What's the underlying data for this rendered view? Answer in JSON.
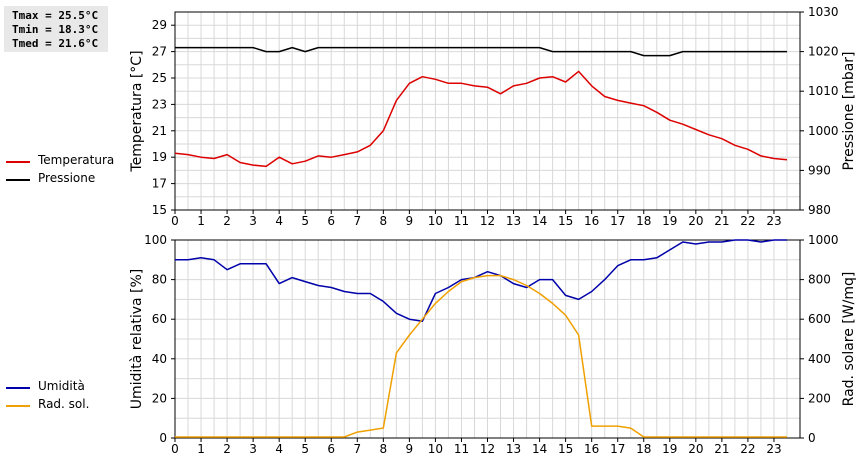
{
  "stats": {
    "tmax": "Tmax = 25.5°C",
    "tmin": "Tmin = 18.3°C",
    "tmed": "Tmed = 21.6°C"
  },
  "colors": {
    "temperature": "#dd0000",
    "pressure": "#000000",
    "humidity": "#0000aa",
    "radiation": "#f0a000",
    "grid": "#d8d8d8"
  },
  "chart_data": [
    {
      "type": "line",
      "xlabel": "",
      "xlim": [
        0,
        24
      ],
      "xticks": [
        "0",
        "1",
        "2",
        "3",
        "4",
        "5",
        "6",
        "7",
        "8",
        "9",
        "10",
        "11",
        "12",
        "13",
        "14",
        "15",
        "16",
        "17",
        "18",
        "19",
        "20",
        "21",
        "22",
        "23"
      ],
      "ylabel": "Temperatura [°C]",
      "ylim": [
        15,
        30
      ],
      "yticks": [
        "15",
        "17",
        "19",
        "21",
        "23",
        "25",
        "27",
        "29"
      ],
      "y2label": "Pressione [mbar]",
      "y2lim": [
        980,
        1030
      ],
      "y2ticks": [
        "980",
        "990",
        "1000",
        "1010",
        "1020",
        "1030"
      ],
      "legend_placement": "left",
      "series": [
        {
          "name": "Temperatura",
          "axis": "left",
          "x": [
            0,
            0.5,
            1,
            1.5,
            2,
            2.5,
            3,
            3.5,
            4,
            4.5,
            5,
            5.5,
            6,
            6.5,
            7,
            7.5,
            8,
            8.5,
            9,
            9.5,
            10,
            10.5,
            11,
            11.5,
            12,
            12.5,
            13,
            13.5,
            14,
            14.5,
            15,
            15.5,
            16,
            16.5,
            17,
            17.5,
            18,
            18.5,
            19,
            19.5,
            20,
            20.5,
            21,
            21.5,
            22,
            22.5,
            23,
            23.5
          ],
          "y": [
            19.3,
            19.2,
            19.0,
            18.9,
            19.2,
            18.6,
            18.4,
            18.3,
            19.0,
            18.5,
            18.7,
            19.1,
            19.0,
            19.2,
            19.4,
            19.9,
            21.0,
            23.3,
            24.6,
            25.1,
            24.9,
            24.6,
            24.6,
            24.4,
            24.3,
            23.8,
            24.4,
            24.6,
            25.0,
            25.1,
            24.7,
            25.5,
            24.4,
            23.6,
            23.3,
            23.1,
            22.9,
            22.4,
            21.8,
            21.5,
            21.1,
            20.7,
            20.4,
            19.9,
            19.6,
            19.1,
            18.9,
            18.8
          ]
        },
        {
          "name": "Pressione",
          "axis": "right",
          "x": [
            0,
            0.5,
            1,
            1.5,
            2,
            2.5,
            3,
            3.5,
            4,
            4.5,
            5,
            5.5,
            6,
            6.5,
            7,
            7.5,
            8,
            8.5,
            9,
            9.5,
            10,
            10.5,
            11,
            11.5,
            12,
            12.5,
            13,
            13.5,
            14,
            14.5,
            15,
            15.5,
            16,
            16.5,
            17,
            17.5,
            18,
            18.5,
            19,
            19.5,
            20,
            20.5,
            21,
            21.5,
            22,
            22.5,
            23,
            23.5
          ],
          "y": [
            1021,
            1021,
            1021,
            1021,
            1021,
            1021,
            1021,
            1020,
            1020,
            1021,
            1020,
            1021,
            1021,
            1021,
            1021,
            1021,
            1021,
            1021,
            1021,
            1021,
            1021,
            1021,
            1021,
            1021,
            1021,
            1021,
            1021,
            1021,
            1021,
            1020,
            1020,
            1020,
            1020,
            1020,
            1020,
            1020,
            1019,
            1019,
            1019,
            1020,
            1020,
            1020,
            1020,
            1020,
            1020,
            1020,
            1020,
            1020
          ]
        }
      ]
    },
    {
      "type": "line",
      "xlabel": "",
      "xlim": [
        0,
        24
      ],
      "xticks": [
        "0",
        "1",
        "2",
        "3",
        "4",
        "5",
        "6",
        "7",
        "8",
        "9",
        "10",
        "11",
        "12",
        "13",
        "14",
        "15",
        "16",
        "17",
        "18",
        "19",
        "20",
        "21",
        "22",
        "23"
      ],
      "ylabel": "Umidità relativa [%]",
      "ylim": [
        0,
        100
      ],
      "yticks": [
        "0",
        "20",
        "40",
        "60",
        "80",
        "100"
      ],
      "y2label": "Rad. solare [W/mq]",
      "y2lim": [
        0,
        1000
      ],
      "y2ticks": [
        "0",
        "200",
        "400",
        "600",
        "800",
        "1000"
      ],
      "legend_placement": "left",
      "series": [
        {
          "name": "Umidità",
          "axis": "left",
          "x": [
            0,
            0.5,
            1,
            1.5,
            2,
            2.5,
            3,
            3.5,
            4,
            4.5,
            5,
            5.5,
            6,
            6.5,
            7,
            7.5,
            8,
            8.5,
            9,
            9.5,
            10,
            10.5,
            11,
            11.5,
            12,
            12.5,
            13,
            13.5,
            14,
            14.5,
            15,
            15.5,
            16,
            16.5,
            17,
            17.5,
            18,
            18.5,
            19,
            19.5,
            20,
            20.5,
            21,
            21.5,
            22,
            22.5,
            23,
            23.5
          ],
          "y": [
            90,
            90,
            91,
            90,
            85,
            88,
            88,
            88,
            78,
            81,
            79,
            77,
            76,
            74,
            73,
            73,
            69,
            63,
            60,
            59,
            73,
            76,
            80,
            81,
            84,
            82,
            78,
            76,
            80,
            80,
            72,
            70,
            74,
            80,
            87,
            90,
            90,
            91,
            95,
            99,
            98,
            99,
            99,
            100,
            100,
            99,
            100,
            100
          ]
        },
        {
          "name": "Rad. sol.",
          "axis": "right",
          "x": [
            0,
            1,
            2,
            3,
            4,
            5,
            6,
            6.5,
            7,
            7.5,
            8,
            8.5,
            9,
            9.5,
            10,
            10.5,
            11,
            11.5,
            12,
            12.5,
            13,
            13.5,
            14,
            14.5,
            15,
            15.5,
            16,
            16.5,
            17,
            17.5,
            18,
            19,
            20,
            21,
            22,
            23,
            23.5
          ],
          "y": [
            5,
            5,
            5,
            5,
            5,
            5,
            5,
            5,
            30,
            40,
            50,
            430,
            520,
            600,
            680,
            740,
            790,
            810,
            820,
            820,
            800,
            770,
            730,
            680,
            620,
            520,
            60,
            60,
            60,
            50,
            5,
            5,
            5,
            5,
            5,
            5,
            5
          ]
        }
      ]
    }
  ]
}
